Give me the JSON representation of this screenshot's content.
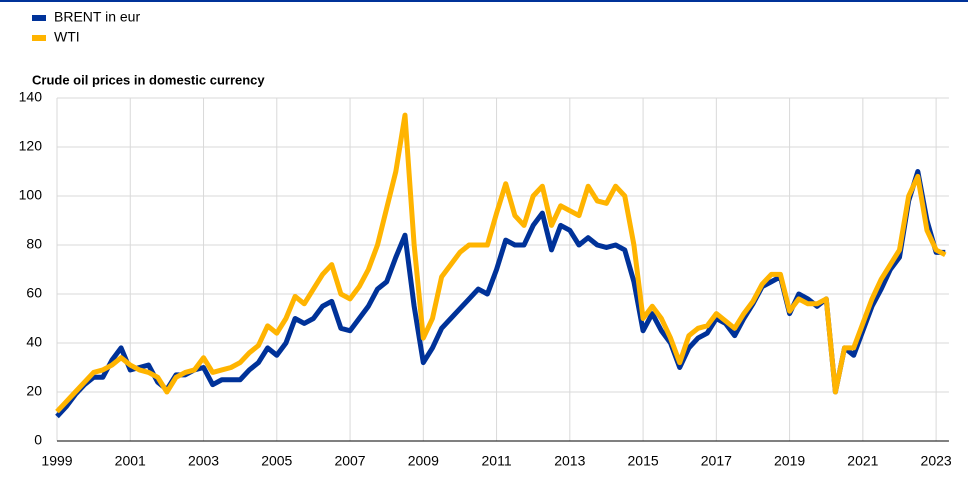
{
  "chart_data": {
    "type": "line",
    "title": "Crude oil prices in domestic currency",
    "x": [
      1999.0,
      1999.25,
      1999.5,
      1999.75,
      2000.0,
      2000.25,
      2000.5,
      2000.75,
      2001.0,
      2001.25,
      2001.5,
      2001.75,
      2002.0,
      2002.25,
      2002.5,
      2002.75,
      2003.0,
      2003.25,
      2003.5,
      2003.75,
      2004.0,
      2004.25,
      2004.5,
      2004.75,
      2005.0,
      2005.25,
      2005.5,
      2005.75,
      2006.0,
      2006.25,
      2006.5,
      2006.75,
      2007.0,
      2007.25,
      2007.5,
      2007.75,
      2008.0,
      2008.25,
      2008.5,
      2008.75,
      2009.0,
      2009.25,
      2009.5,
      2009.75,
      2010.0,
      2010.25,
      2010.5,
      2010.75,
      2011.0,
      2011.25,
      2011.5,
      2011.75,
      2012.0,
      2012.25,
      2012.5,
      2012.75,
      2013.0,
      2013.25,
      2013.5,
      2013.75,
      2014.0,
      2014.25,
      2014.5,
      2014.75,
      2015.0,
      2015.25,
      2015.5,
      2015.75,
      2016.0,
      2016.25,
      2016.5,
      2016.75,
      2017.0,
      2017.25,
      2017.5,
      2017.75,
      2018.0,
      2018.25,
      2018.5,
      2018.75,
      2019.0,
      2019.25,
      2019.5,
      2019.75,
      2020.0,
      2020.25,
      2020.5,
      2020.75,
      2021.0,
      2021.25,
      2021.5,
      2021.75,
      2022.0,
      2022.25,
      2022.5,
      2022.75,
      2023.0,
      2023.25
    ],
    "series": [
      {
        "name": "BRENT in eur",
        "color": "#003299",
        "values": [
          10,
          14,
          19,
          23,
          26,
          26,
          33,
          38,
          29,
          30,
          31,
          24,
          21,
          27,
          27,
          29,
          30,
          23,
          25,
          25,
          25,
          29,
          32,
          38,
          35,
          40,
          50,
          48,
          50,
          55,
          57,
          46,
          45,
          50,
          55,
          62,
          65,
          75,
          84,
          55,
          32,
          38,
          46,
          50,
          54,
          58,
          62,
          60,
          70,
          82,
          80,
          80,
          88,
          93,
          78,
          88,
          86,
          80,
          83,
          80,
          79,
          80,
          78,
          65,
          45,
          52,
          45,
          40,
          30,
          38,
          42,
          44,
          50,
          48,
          43,
          50,
          56,
          63,
          65,
          67,
          52,
          60,
          58,
          55,
          58,
          20,
          38,
          35,
          45,
          55,
          62,
          70,
          75,
          98,
          110,
          90,
          77,
          77
        ]
      },
      {
        "name": "WTI",
        "color": "#ffb400",
        "values": [
          12,
          16,
          20,
          24,
          28,
          29,
          31,
          34,
          31,
          29,
          28,
          26,
          20,
          26,
          28,
          29,
          34,
          28,
          29,
          30,
          32,
          36,
          39,
          47,
          44,
          50,
          59,
          56,
          62,
          68,
          72,
          60,
          58,
          63,
          70,
          80,
          95,
          110,
          133,
          80,
          42,
          50,
          67,
          72,
          77,
          80,
          80,
          80,
          93,
          105,
          92,
          88,
          100,
          104,
          88,
          96,
          94,
          92,
          104,
          98,
          97,
          104,
          100,
          80,
          50,
          55,
          50,
          42,
          32,
          43,
          46,
          47,
          52,
          49,
          46,
          52,
          57,
          64,
          68,
          68,
          53,
          58,
          56,
          56,
          58,
          20,
          38,
          38,
          48,
          58,
          66,
          72,
          78,
          100,
          108,
          86,
          78,
          76
        ]
      }
    ],
    "xlim": [
      1999,
      2023.35
    ],
    "xticks": [
      1999,
      2001,
      2003,
      2005,
      2007,
      2009,
      2011,
      2013,
      2015,
      2017,
      2019,
      2021,
      2023
    ],
    "ylim": [
      0,
      140
    ],
    "yticks": [
      0,
      20,
      40,
      60,
      80,
      100,
      120,
      140
    ],
    "grid": true
  }
}
